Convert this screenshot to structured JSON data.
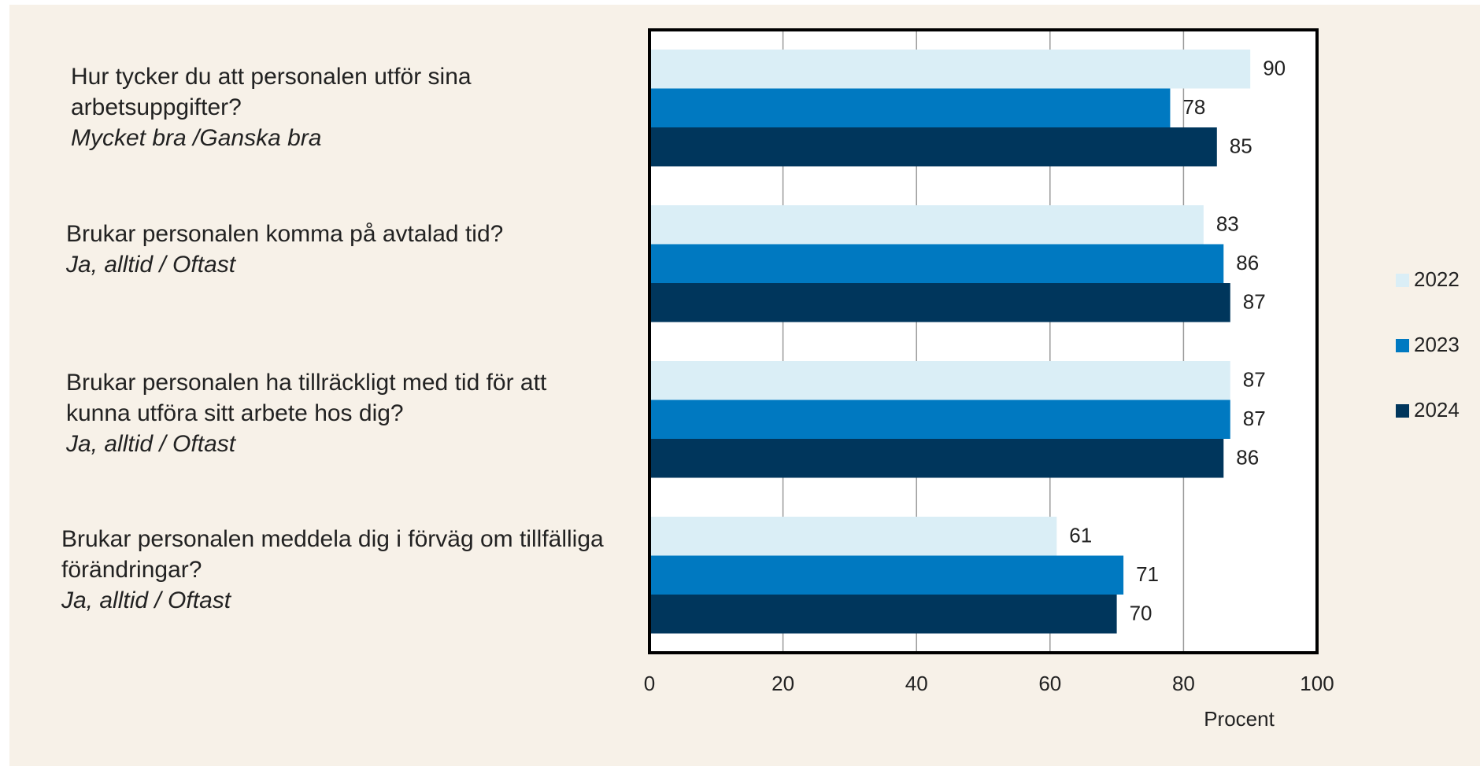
{
  "chart_data": {
    "type": "bar",
    "orientation": "horizontal",
    "categories": [
      "Hur tycker du att personalen utför sina arbetsuppgifter?",
      "Brukar personalen komma på avtalad tid?",
      "Brukar personalen ha tillräckligt med tid för att kunna utföra sitt arbete hos dig?",
      "Brukar personalen meddela dig i förväg om tillfälliga förändringar?"
    ],
    "category_notes": [
      "Mycket bra /Ganska bra",
      "Ja, alltid / Oftast",
      "Ja, alltid / Oftast",
      "Ja, alltid / Oftast"
    ],
    "series": [
      {
        "name": "2022",
        "color": "#daeef6",
        "values": [
          90,
          83,
          87,
          61
        ]
      },
      {
        "name": "2023",
        "color": "#0079c1",
        "values": [
          78,
          86,
          87,
          71
        ]
      },
      {
        "name": "2024",
        "color": "#00365c",
        "values": [
          85,
          87,
          86,
          70
        ]
      }
    ],
    "xlabel": "Procent",
    "xlim": [
      0,
      100
    ],
    "xticks": [
      0,
      20,
      40,
      60,
      80,
      100
    ],
    "grid": true,
    "legend": "right"
  }
}
